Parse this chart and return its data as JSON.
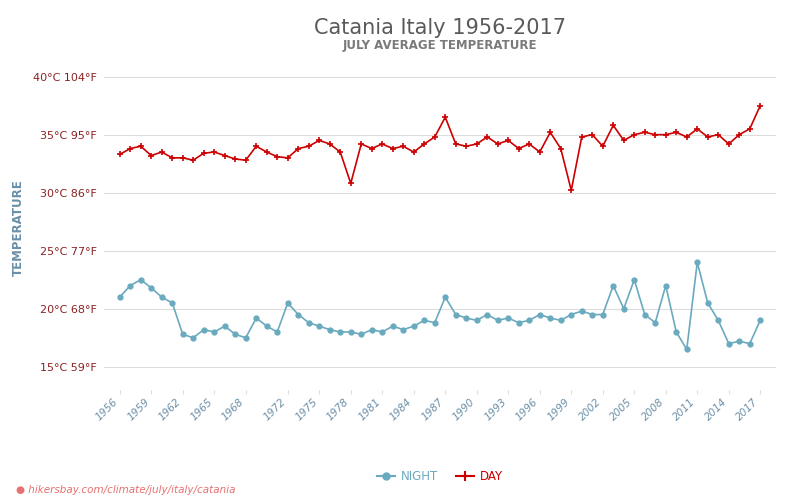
{
  "title": "Catania Italy 1956-2017",
  "subtitle": "JULY AVERAGE TEMPERATURE",
  "ylabel": "TEMPERATURE",
  "url_text": "● hikersbay.com/climate/july/italy/catania",
  "title_color": "#5a5a5a",
  "subtitle_color": "#7a7a7a",
  "ylabel_color": "#6a8fa8",
  "ytick_color": "#8b2222",
  "xtick_color": "#6a8fa8",
  "background_color": "#ffffff",
  "grid_color": "#dddddd",
  "day_color": "#cc0000",
  "night_color": "#6aaabf",
  "years": [
    1956,
    1957,
    1958,
    1959,
    1960,
    1961,
    1962,
    1963,
    1964,
    1965,
    1966,
    1967,
    1968,
    1969,
    1970,
    1971,
    1972,
    1973,
    1974,
    1975,
    1976,
    1977,
    1978,
    1979,
    1980,
    1981,
    1982,
    1983,
    1984,
    1985,
    1986,
    1987,
    1988,
    1989,
    1990,
    1991,
    1992,
    1993,
    1994,
    1995,
    1996,
    1997,
    1998,
    1999,
    2000,
    2001,
    2002,
    2003,
    2004,
    2005,
    2006,
    2007,
    2008,
    2009,
    2010,
    2011,
    2012,
    2013,
    2014,
    2015,
    2016,
    2017
  ],
  "day_temps": [
    33.3,
    33.8,
    34.0,
    33.2,
    33.5,
    33.0,
    33.0,
    32.8,
    33.4,
    33.5,
    33.2,
    32.9,
    32.8,
    34.0,
    33.5,
    33.1,
    33.0,
    33.8,
    34.0,
    34.5,
    34.2,
    33.5,
    30.8,
    34.2,
    33.8,
    34.2,
    33.8,
    34.0,
    33.5,
    34.2,
    34.8,
    36.5,
    34.2,
    34.0,
    34.2,
    34.8,
    34.2,
    34.5,
    33.8,
    34.2,
    33.5,
    35.2,
    33.8,
    30.2,
    34.8,
    35.0,
    34.0,
    35.8,
    34.5,
    35.0,
    35.2,
    35.0,
    35.0,
    35.2,
    34.8,
    35.5,
    34.8,
    35.0,
    34.2,
    35.0,
    35.5,
    37.5
  ],
  "night_temps": [
    21.0,
    22.0,
    22.5,
    21.8,
    21.0,
    20.5,
    17.8,
    17.5,
    18.2,
    18.0,
    18.5,
    17.8,
    17.5,
    19.2,
    18.5,
    18.0,
    20.5,
    19.5,
    18.8,
    18.5,
    18.2,
    18.0,
    18.0,
    17.8,
    18.2,
    18.0,
    18.5,
    18.2,
    18.5,
    19.0,
    18.8,
    21.0,
    19.5,
    19.2,
    19.0,
    19.5,
    19.0,
    19.2,
    18.8,
    19.0,
    19.5,
    19.2,
    19.0,
    19.5,
    19.8,
    19.5,
    19.5,
    22.0,
    20.0,
    22.5,
    19.5,
    18.8,
    22.0,
    18.0,
    16.5,
    24.0,
    20.5,
    19.0,
    17.0,
    17.2,
    17.0,
    19.0
  ],
  "ylim": [
    13,
    41
  ],
  "yticks_c": [
    15,
    20,
    25,
    30,
    35,
    40
  ],
  "yticks_f": [
    59,
    68,
    77,
    86,
    95,
    104
  ],
  "xtick_years": [
    1956,
    1959,
    1962,
    1965,
    1968,
    1972,
    1975,
    1978,
    1981,
    1984,
    1987,
    1990,
    1993,
    1996,
    1999,
    2002,
    2005,
    2008,
    2011,
    2014,
    2017
  ]
}
